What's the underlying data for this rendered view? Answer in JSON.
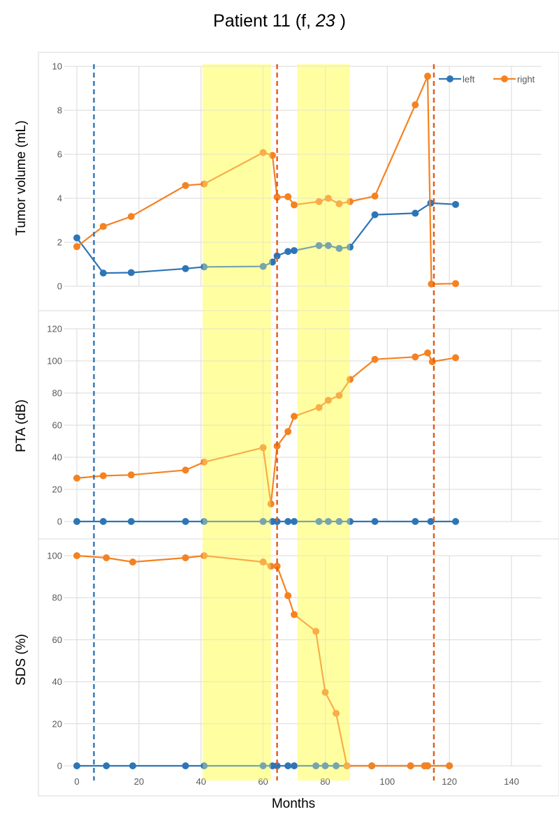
{
  "title": {
    "prefix": "Patient 11 (f, ",
    "age": "23",
    "suffix": " )"
  },
  "colors": {
    "left": "#2E75B6",
    "right": "#F58220",
    "highlight": "#FFFF99",
    "left_marker_line": "#2E75B6",
    "right_marker_line": "#E05A1A",
    "grid": "#D9D9D9"
  },
  "chart_data": [
    {
      "type": "line",
      "ylabel": "Tumor volume (mL)",
      "ylim": [
        0,
        10
      ],
      "yticks": [
        0,
        2,
        4,
        6,
        8,
        10
      ],
      "legend": {
        "placement": "top-right",
        "entries": [
          "left",
          "right"
        ]
      },
      "series": [
        {
          "name": "left",
          "x": [
            0,
            8.5,
            17.5,
            35,
            41,
            60,
            63,
            64.5,
            68,
            70,
            78,
            81,
            84.5,
            88,
            96,
            109,
            114,
            122
          ],
          "y": [
            2.2,
            0.6,
            0.62,
            0.8,
            0.88,
            0.9,
            1.1,
            1.38,
            1.58,
            1.62,
            1.85,
            1.85,
            1.72,
            1.78,
            3.25,
            3.32,
            3.78,
            3.72
          ]
        },
        {
          "name": "right",
          "x": [
            0,
            8.5,
            17.5,
            35,
            41,
            60,
            63,
            64.5,
            68,
            70,
            78,
            81,
            84.5,
            88,
            96,
            109,
            113,
            114.2,
            122
          ],
          "y": [
            1.8,
            2.72,
            3.17,
            4.58,
            4.65,
            6.08,
            5.95,
            4.05,
            4.07,
            3.7,
            3.85,
            4.0,
            3.75,
            3.85,
            4.1,
            8.25,
            9.55,
            0.1,
            0.12
          ]
        }
      ]
    },
    {
      "type": "line",
      "ylabel": "PTA (dB)",
      "ylim": [
        0,
        120
      ],
      "yticks": [
        0,
        20,
        40,
        60,
        80,
        100,
        120
      ],
      "series": [
        {
          "name": "left",
          "x": [
            0,
            8.5,
            17.5,
            35,
            41,
            60,
            63,
            64.5,
            68,
            70,
            78,
            81,
            84.5,
            88,
            96,
            109,
            114,
            122
          ],
          "y": [
            0,
            0,
            0,
            0,
            0,
            0,
            0,
            0,
            0,
            0,
            0,
            0,
            0,
            0,
            0,
            0,
            0,
            0
          ]
        },
        {
          "name": "right",
          "x": [
            0,
            8.5,
            17.5,
            35,
            41,
            60,
            62.5,
            64.5,
            68,
            70,
            78,
            81,
            84.5,
            88,
            96,
            109,
            113,
            114.5,
            122
          ],
          "y": [
            27,
            28.5,
            29,
            32,
            37,
            46,
            11,
            47,
            56,
            65.5,
            71,
            75.5,
            78.5,
            88.5,
            101,
            102.5,
            105,
            99.5,
            102
          ]
        }
      ]
    },
    {
      "type": "line",
      "ylabel": "SDS (%)",
      "xlabel": "Months",
      "ylim": [
        0,
        100
      ],
      "yticks": [
        0,
        20,
        40,
        60,
        80,
        100
      ],
      "xlim": [
        -2,
        150
      ],
      "xticks": [
        0,
        20,
        40,
        60,
        80,
        100,
        120,
        140
      ],
      "series": [
        {
          "name": "left",
          "x": [
            0,
            9.5,
            18,
            35,
            41,
            60,
            63,
            64.5,
            68,
            70,
            77,
            80,
            83.5,
            87,
            95,
            107.5,
            112,
            113,
            120
          ],
          "y": [
            0,
            0,
            0,
            0,
            0,
            0,
            0,
            0,
            0,
            0,
            0,
            0,
            0,
            0,
            0,
            0,
            0,
            0,
            0
          ]
        },
        {
          "name": "right",
          "x": [
            0,
            9.5,
            18,
            35,
            41,
            60,
            62.5,
            64.5,
            68,
            70,
            77,
            80,
            83.5,
            87,
            95,
            107.5,
            112,
            113,
            120
          ],
          "y": [
            100,
            99,
            97,
            99,
            100,
            97,
            95,
            95,
            81,
            72,
            64,
            35,
            25,
            0,
            0,
            0,
            0,
            0,
            0
          ]
        }
      ]
    }
  ],
  "highlight_bands_months": [
    [
      40.5,
      62.5
    ],
    [
      71,
      88
    ]
  ],
  "event_lines_months": [
    {
      "x": 5.5,
      "series": "left"
    },
    {
      "x": 64.5,
      "series": "right"
    },
    {
      "x": 115,
      "series": "right"
    }
  ]
}
